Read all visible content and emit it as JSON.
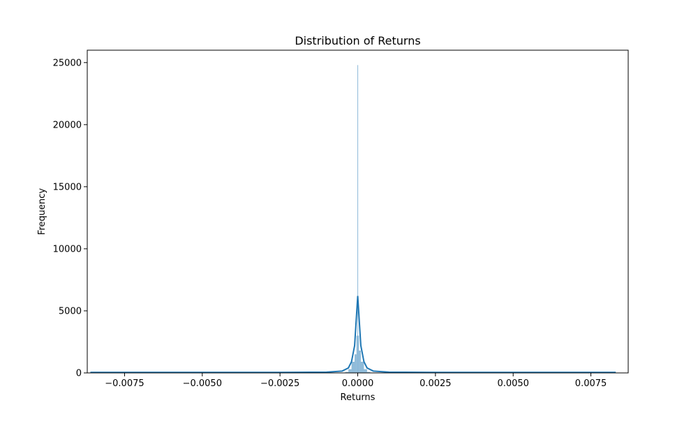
{
  "chart_data": {
    "type": "bar",
    "title": "Distribution of Returns",
    "xlabel": "Returns",
    "ylabel": "Frequency",
    "xlim": [
      -0.0087,
      0.0087
    ],
    "ylim": [
      0,
      26000
    ],
    "grid": false,
    "legend": "none",
    "x_ticks": [
      {
        "value": -0.0075,
        "label": "−0.0075"
      },
      {
        "value": -0.005,
        "label": "−0.0050"
      },
      {
        "value": -0.0025,
        "label": "−0.0025"
      },
      {
        "value": 0.0,
        "label": "0.0000"
      },
      {
        "value": 0.0025,
        "label": "0.0025"
      },
      {
        "value": 0.005,
        "label": "0.0050"
      },
      {
        "value": 0.0075,
        "label": "0.0075"
      }
    ],
    "y_ticks": [
      {
        "value": 0,
        "label": "0"
      },
      {
        "value": 5000,
        "label": "5000"
      },
      {
        "value": 10000,
        "label": "10000"
      },
      {
        "value": 15000,
        "label": "15000"
      },
      {
        "value": 20000,
        "label": "20000"
      },
      {
        "value": 25000,
        "label": "25000"
      }
    ],
    "histogram": {
      "bins": [
        {
          "x0": -0.0004,
          "x1": -0.0003,
          "count": 80
        },
        {
          "x0": -0.0003,
          "x1": -0.0002,
          "count": 300
        },
        {
          "x0": -0.0002,
          "x1": -0.0001,
          "count": 900
        },
        {
          "x0": -0.0001,
          "x1": -4e-05,
          "count": 1500
        },
        {
          "x0": -4e-05,
          "x1": -1e-05,
          "count": 3000
        },
        {
          "x0": -1e-05,
          "x1": 1e-05,
          "count": 24800
        },
        {
          "x0": 1e-05,
          "x1": 4e-05,
          "count": 3000
        },
        {
          "x0": 4e-05,
          "x1": 0.0001,
          "count": 1800
        },
        {
          "x0": 0.0001,
          "x1": 0.0002,
          "count": 900
        },
        {
          "x0": 0.0002,
          "x1": 0.0003,
          "count": 300
        },
        {
          "x0": 0.0003,
          "x1": 0.0004,
          "count": 80
        }
      ]
    },
    "kde": {
      "x": [
        -0.0086,
        -0.0075,
        -0.005,
        -0.0025,
        -0.001,
        -0.0005,
        -0.0003,
        -0.0002,
        -0.0001,
        -5e-05,
        0.0,
        5e-05,
        0.0001,
        0.0002,
        0.0003,
        0.0005,
        0.001,
        0.0025,
        0.005,
        0.0075,
        0.0083
      ],
      "y": [
        40,
        40,
        40,
        45,
        60,
        150,
        400,
        900,
        2200,
        4200,
        6200,
        4200,
        2200,
        900,
        400,
        150,
        60,
        45,
        40,
        40,
        40
      ]
    },
    "colors": {
      "bar_fill": "#1f77b4",
      "kde_line": "#1f77b4"
    }
  }
}
